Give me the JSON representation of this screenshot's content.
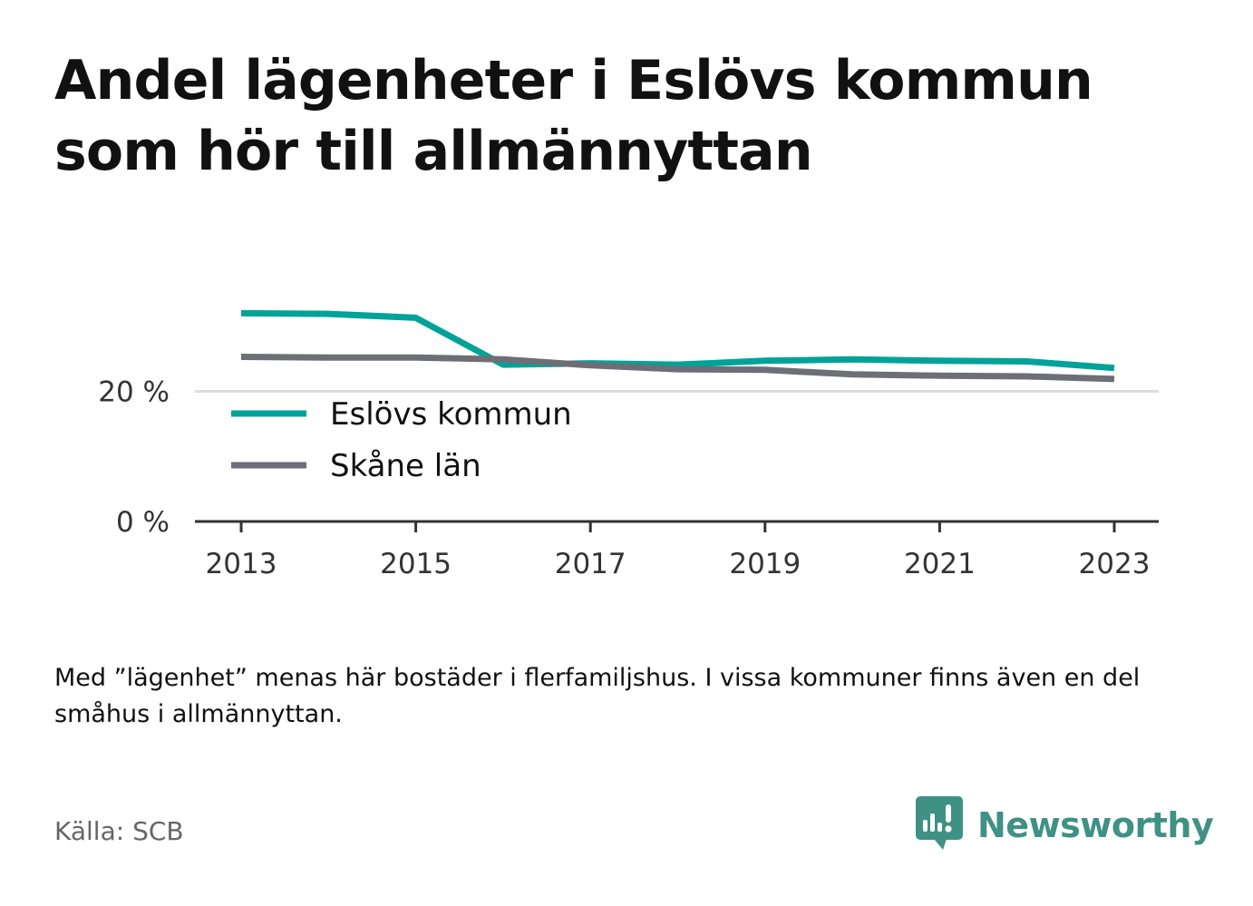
{
  "title": "Andel lägenheter i Eslövs kommun som hör till allmännyttan",
  "note": "Med ”lägenhet” menas här bostäder i flerfamiljshus. I vissa kommuner finns även en del småhus i allmännyttan.",
  "source": "Källa: SCB",
  "brand": {
    "name": "Newsworthy",
    "logo_icon": "bar-chart-speech-bubble-icon",
    "color": "#3f9184"
  },
  "chart_data": {
    "type": "line",
    "x": [
      2013,
      2014,
      2015,
      2016,
      2017,
      2018,
      2019,
      2020,
      2021,
      2022,
      2023
    ],
    "x_tick_labels": [
      "2013",
      "2015",
      "2017",
      "2019",
      "2021",
      "2023"
    ],
    "x_ticks": [
      2013,
      2015,
      2017,
      2019,
      2021,
      2023
    ],
    "y_tick_labels": [
      "0 %",
      "20 %"
    ],
    "y_ticks": [
      0,
      20
    ],
    "ylim": [
      0,
      34
    ],
    "grid": "horizontal",
    "legend_position": "inside-left",
    "series": [
      {
        "name": "Eslövs kommun",
        "color": "#00a398",
        "values": [
          32.0,
          31.9,
          31.3,
          24.1,
          24.3,
          24.1,
          24.7,
          24.9,
          24.7,
          24.6,
          23.6
        ]
      },
      {
        "name": "Skåne län",
        "color": "#6e6e76",
        "values": [
          25.3,
          25.2,
          25.2,
          24.9,
          24.0,
          23.4,
          23.3,
          22.6,
          22.4,
          22.3,
          21.9
        ]
      }
    ]
  }
}
